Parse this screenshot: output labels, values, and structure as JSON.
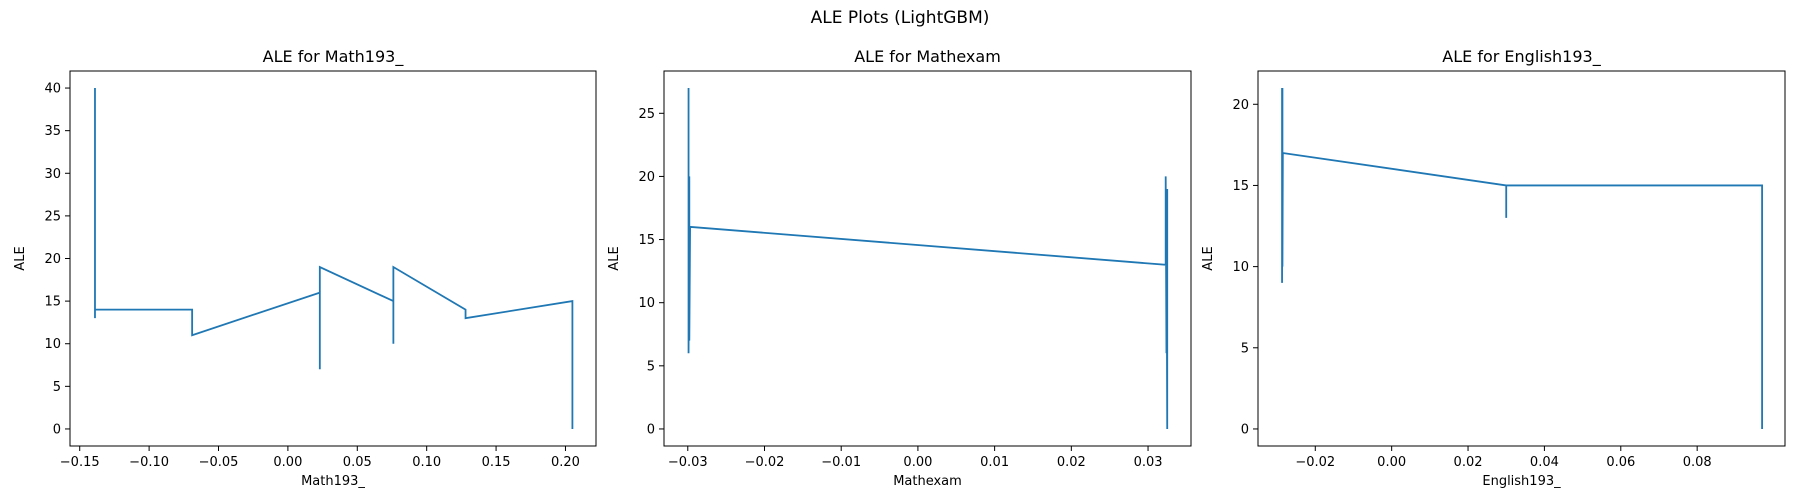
{
  "figure": {
    "suptitle": "ALE Plots (LightGBM)",
    "line_color": "#1f77b4"
  },
  "chart_data": [
    {
      "type": "line",
      "title": "ALE for Math193_",
      "xlabel": "Math193_",
      "ylabel": "ALE",
      "xlim": [
        -0.157,
        0.222
      ],
      "ylim": [
        -2,
        42
      ],
      "xticks": [
        -0.15,
        -0.1,
        -0.05,
        0.0,
        0.05,
        0.1,
        0.15,
        0.2
      ],
      "xtick_labels": [
        "−0.15",
        "−0.10",
        "−0.05",
        "0.00",
        "0.05",
        "0.10",
        "0.15",
        "0.20"
      ],
      "yticks": [
        0,
        5,
        10,
        15,
        20,
        25,
        30,
        35,
        40
      ],
      "ytick_labels": [
        "0",
        "5",
        "10",
        "15",
        "20",
        "25",
        "30",
        "35",
        "40"
      ],
      "grid": false,
      "series": [
        {
          "x": [
            -0.139,
            -0.139,
            -0.139,
            -0.139,
            -0.069,
            -0.069,
            0.023,
            0.023,
            0.023,
            0.023,
            0.076,
            0.076,
            0.076,
            0.076,
            0.128,
            0.128,
            0.205,
            0.205
          ],
          "y": [
            40,
            13,
            14,
            14,
            14,
            11,
            16,
            7,
            19,
            19,
            15,
            10,
            19,
            19,
            14,
            13,
            15,
            0
          ]
        }
      ]
    },
    {
      "type": "line",
      "title": "ALE for Mathexam",
      "xlabel": "Mathexam",
      "ylabel": "ALE",
      "xlim": [
        -0.0331,
        0.0356
      ],
      "ylim": [
        -1.35,
        28.35
      ],
      "xticks": [
        -0.03,
        -0.02,
        -0.01,
        0.0,
        0.01,
        0.02,
        0.03
      ],
      "xtick_labels": [
        "−0.03",
        "−0.02",
        "−0.01",
        "0.00",
        "0.01",
        "0.02",
        "0.03"
      ],
      "yticks": [
        0,
        5,
        10,
        15,
        20,
        25
      ],
      "ytick_labels": [
        "0",
        "5",
        "10",
        "15",
        "20",
        "25"
      ],
      "grid": false,
      "series": [
        {
          "x": [
            -0.0299,
            -0.0299,
            -0.0298,
            -0.0298,
            -0.0297,
            -0.0297,
            -0.0296,
            0.0323,
            0.0323,
            0.0324,
            0.0324,
            0.0325,
            0.0325
          ],
          "y": [
            27,
            6,
            20,
            7,
            16,
            16,
            16,
            13,
            20,
            6,
            19,
            0,
            19
          ]
        }
      ]
    },
    {
      "type": "line",
      "title": "ALE for English193_",
      "xlabel": "English193_",
      "ylabel": "ALE",
      "xlim": [
        -0.035,
        0.103
      ],
      "ylim": [
        -1.05,
        22.05
      ],
      "xticks": [
        -0.02,
        0.0,
        0.02,
        0.04,
        0.06,
        0.08
      ],
      "xtick_labels": [
        "−0.02",
        "0.00",
        "0.02",
        "0.04",
        "0.06",
        "0.08"
      ],
      "yticks": [
        0,
        5,
        10,
        15,
        20
      ],
      "ytick_labels": [
        "0",
        "5",
        "10",
        "15",
        "20"
      ],
      "grid": false,
      "series": [
        {
          "x": [
            -0.0287,
            -0.0287,
            -0.0286,
            -0.0286,
            -0.0285,
            -0.0285,
            0.03,
            0.03,
            0.03,
            0.097,
            0.097
          ],
          "y": [
            21,
            9,
            21,
            10,
            17,
            17,
            15,
            13,
            15,
            15,
            0
          ]
        }
      ]
    }
  ]
}
